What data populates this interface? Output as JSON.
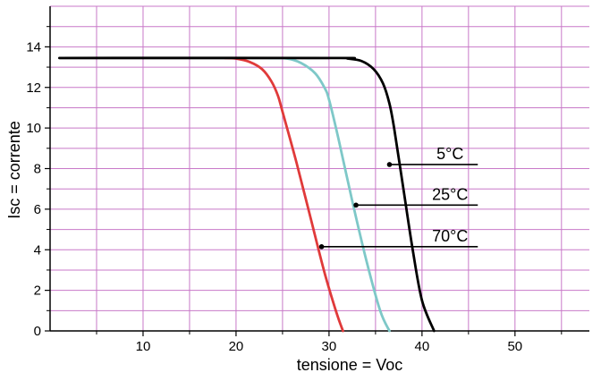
{
  "chart_data": {
    "type": "line",
    "title": "",
    "xlabel": "tensione = Voc",
    "ylabel": "Isc = corrente",
    "xlim": [
      0,
      58
    ],
    "ylim": [
      0,
      16
    ],
    "xticks": [
      10,
      20,
      30,
      40,
      50
    ],
    "yticks": [
      0,
      2,
      4,
      6,
      8,
      10,
      12,
      14
    ],
    "x_tick_labels": [
      "10",
      "20",
      "30",
      "40",
      "50"
    ],
    "y_tick_labels": [
      "0",
      "2",
      "4",
      "6",
      "8",
      "10",
      "12",
      "14"
    ],
    "grid": true,
    "series": [
      {
        "name": "5°C",
        "color": "#000000",
        "points": [
          [
            1,
            13.45
          ],
          [
            30,
            13.45
          ],
          [
            32,
            13.42
          ],
          [
            33.5,
            13.3
          ],
          [
            34.8,
            12.9
          ],
          [
            35.8,
            12.2
          ],
          [
            36.5,
            11.2
          ],
          [
            37,
            10.0
          ],
          [
            38,
            7.0
          ],
          [
            39,
            4.0
          ],
          [
            40,
            1.5
          ],
          [
            41.3,
            0
          ]
        ],
        "label_x": 36.5,
        "label_y": 8.2
      },
      {
        "name": "25°C",
        "color": "#7ec8c8",
        "points": [
          [
            23.5,
            13.45
          ],
          [
            25.5,
            13.42
          ],
          [
            27,
            13.2
          ],
          [
            28.5,
            12.7
          ],
          [
            29.5,
            12.0
          ],
          [
            30,
            11.4
          ],
          [
            31,
            9.5
          ],
          [
            32.5,
            6.4
          ],
          [
            34,
            3.5
          ],
          [
            35.5,
            1.0
          ],
          [
            36.5,
            0
          ]
        ],
        "label_x": 32.9,
        "label_y": 6.2
      },
      {
        "name": "70°C",
        "color": "#e03a3a",
        "points": [
          [
            18.8,
            13.45
          ],
          [
            20,
            13.42
          ],
          [
            21.5,
            13.25
          ],
          [
            22.8,
            12.9
          ],
          [
            23.8,
            12.3
          ],
          [
            24.5,
            11.6
          ],
          [
            25,
            10.8
          ],
          [
            26.5,
            8.3
          ],
          [
            28,
            5.6
          ],
          [
            29.5,
            2.9
          ],
          [
            30.8,
            0.9
          ],
          [
            31.5,
            0
          ]
        ],
        "label_x": 29.2,
        "label_y": 4.15
      }
    ],
    "annotations": [
      {
        "text": "5°C",
        "series": "5°C",
        "line_end_x": 46
      },
      {
        "text": "25°C",
        "series": "25°C",
        "line_end_x": 46
      },
      {
        "text": "70°C",
        "series": "70°C",
        "line_end_x": 46
      }
    ],
    "colors": {
      "grid": "#c879c8",
      "axis": "#000000",
      "flat_line": "#000000"
    },
    "flat_segment": {
      "x_start": 1,
      "x_end": 30,
      "y": 13.45
    }
  }
}
